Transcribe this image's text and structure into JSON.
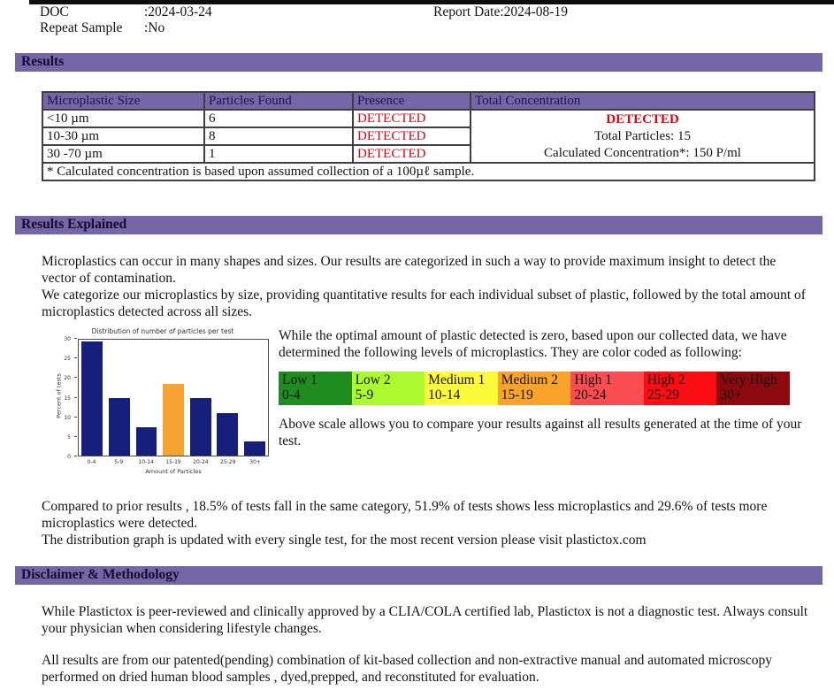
{
  "header": {
    "doc_label": "DOC",
    "doc_value": ":2024-03-24",
    "report_label": "Report Date:",
    "report_value": "2024-08-19",
    "repeat_label": "Repeat Sample",
    "repeat_value": ":No"
  },
  "sections": {
    "results": "Results",
    "results_explained": "Results Explained",
    "disclaimer": "Disclaimer & Methodology"
  },
  "results_table": {
    "columns": [
      "Microplastic Size",
      "Particles Found",
      "Presence",
      "Total Concentration"
    ],
    "rows": [
      {
        "size": "<10 µm",
        "particles": "6",
        "presence": "DETECTED"
      },
      {
        "size": "10-30 µm",
        "particles": "8",
        "presence": "DETECTED"
      },
      {
        "size": "30 -70 µm",
        "particles": "1",
        "presence": "DETECTED"
      }
    ],
    "total": {
      "presence": "DETECTED",
      "total_particles": "Total Particles: 15",
      "calculated_concentration": "Calculated Concentration*: 150 P/ml"
    },
    "footnote": "* Calculated concentration is based upon assumed collection of a 100µℓ sample."
  },
  "explained": {
    "para1_line1": "Microplastics can occur in many shapes and sizes. Our results are categorized in such a way to provide maximum insight to detect the vector of contamination.",
    "para1_line2": "We categorize our microplastics by size, providing quantitative results for each individual subset of plastic, followed by the total amount of microplastics detected across all sizes.",
    "optimal_text": "While the optimal amount of plastic detected is zero, based upon our collected data, we have determined the following levels of microplastics. They are color coded as following:",
    "above_scale_text": "Above scale allows you to compare your results against all results generated at the time of your test.",
    "compared_line1": "Compared to prior results , 18.5% of tests fall in the same category, 51.9% of tests shows less microplastics and 29.6% of tests more microplastics were detected.",
    "compared_line2": "The distribution graph is updated with every single test, for the most recent version please visit plastictox.com"
  },
  "scale": [
    {
      "label": "Low 1",
      "range": "0-4",
      "color": "#1f8c1f"
    },
    {
      "label": "Low 2",
      "range": "5-9",
      "color": "#adf92f"
    },
    {
      "label": "Medium 1",
      "range": "10-14",
      "color": "#fbfb3c"
    },
    {
      "label": "Medium 2",
      "range": "15-19",
      "color": "#f8a42c"
    },
    {
      "label": "High 1",
      "range": "20-24",
      "color": "#f94d52"
    },
    {
      "label": "High 2",
      "range": "25-29",
      "color": "#fa0d13"
    },
    {
      "label": "Very High",
      "range": "30+",
      "color": "#8c0a0e"
    }
  ],
  "chart_data": {
    "type": "bar",
    "title": "Distribution of number of particles per test",
    "xlabel": "Amount of Particles",
    "ylabel": "Percent of tests",
    "categories": [
      "0-4",
      "5-9",
      "10-14",
      "15-19",
      "20-24",
      "25-29",
      "30+"
    ],
    "values": [
      29.6,
      14.8,
      7.4,
      18.5,
      14.8,
      11.1,
      3.7
    ],
    "ylim": [
      0,
      30
    ],
    "yticks": [
      0,
      5,
      10,
      15,
      20,
      25,
      30
    ],
    "bar_color": "#16207c",
    "highlight_index": 3,
    "highlight_color": "#f7a331",
    "grid": false,
    "legend": null
  },
  "disclaimer": {
    "para1": "While Plastictox is peer-reviewed and clinically approved by a CLIA/COLA certified lab, Plastictox is not a diagnostic test. Always consult your physician when considering lifestyle changes.",
    "para2": "All results are from our patented(pending) combination of kit-based collection and non-extractive manual and automated microscopy performed on dried human blood samples , dyed,prepped, and reconstituted for evaluation."
  }
}
